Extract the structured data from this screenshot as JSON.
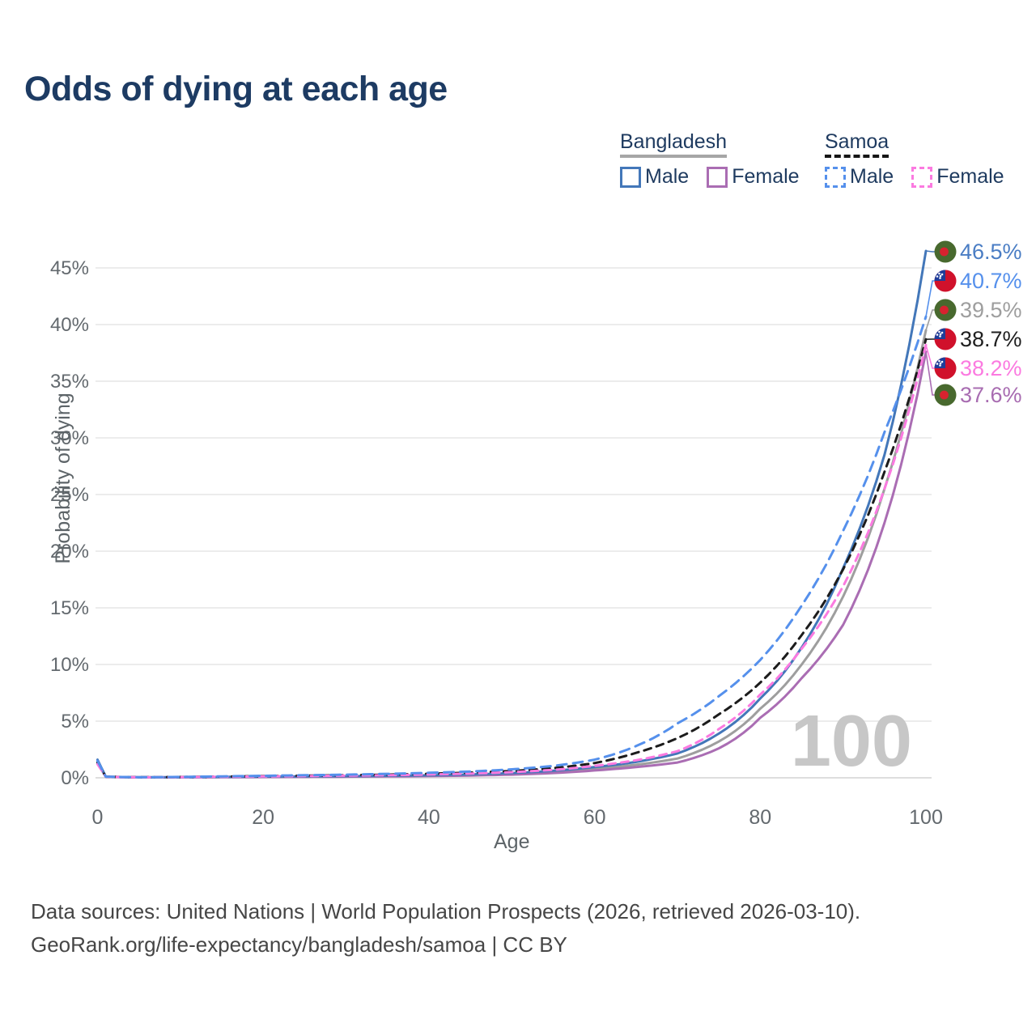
{
  "title": "Odds of dying at each age",
  "watermark_age": "100",
  "legend": {
    "groups": [
      {
        "name": "Bangladesh",
        "underline": "solid",
        "items": [
          {
            "label": "Male",
            "series": 0
          },
          {
            "label": "Female",
            "series": 5
          }
        ]
      },
      {
        "name": "Samoa",
        "underline": "dashed",
        "items": [
          {
            "label": "Male",
            "series": 1
          },
          {
            "label": "Female",
            "series": 4
          }
        ]
      }
    ]
  },
  "footer": {
    "line1": "Data sources: United Nations | World Population Prospects (2026, retrieved 2026-03-10).",
    "line2": "GeoRank.org/life-expectancy/bangladesh/samoa | CC BY"
  },
  "chart_data": {
    "type": "line",
    "title": "Odds of dying at each age",
    "xlabel": "Age",
    "ylabel": "Probability of dying",
    "xlim": [
      0,
      100
    ],
    "ylim_percent": [
      0,
      47
    ],
    "grid": true,
    "legend_position": "top-right",
    "x_ticks": [
      0,
      20,
      40,
      60,
      80,
      100
    ],
    "y_tick_values": [
      0,
      5,
      10,
      15,
      20,
      25,
      30,
      35,
      40,
      45
    ],
    "y_tick_labels": [
      "0%",
      "5%",
      "10%",
      "15%",
      "20%",
      "25%",
      "30%",
      "35%",
      "40%",
      "45%"
    ],
    "x": [
      0,
      1,
      5,
      10,
      15,
      20,
      25,
      30,
      35,
      40,
      45,
      50,
      55,
      60,
      65,
      70,
      75,
      80,
      85,
      90,
      95,
      100
    ],
    "series": [
      {
        "id": "bangladesh-male",
        "name": "Bangladesh — Male",
        "country": "Bangladesh",
        "sex": "male",
        "color": "#4377b9",
        "label_color": "#4a7dc4",
        "dashed": false,
        "flag": "bangladesh",
        "end_label": "46.5%",
        "values": [
          1.6,
          0.1,
          0.04,
          0.05,
          0.08,
          0.11,
          0.13,
          0.15,
          0.18,
          0.22,
          0.3,
          0.42,
          0.62,
          0.95,
          1.4,
          2.15,
          3.9,
          7.0,
          11.5,
          18.5,
          28.5,
          46.5
        ]
      },
      {
        "id": "samoa-male",
        "name": "Samoa — Male",
        "country": "Samoa",
        "sex": "male",
        "color": "#5590ec",
        "label_color": "#5590ec",
        "dashed": true,
        "flag": "samoa",
        "end_label": "40.7%",
        "values": [
          1.5,
          0.1,
          0.05,
          0.08,
          0.13,
          0.18,
          0.23,
          0.28,
          0.35,
          0.44,
          0.56,
          0.75,
          1.05,
          1.6,
          2.8,
          4.8,
          7.2,
          10.4,
          15.2,
          21.8,
          30.5,
          40.7
        ]
      },
      {
        "id": "bangladesh-both",
        "name": "Bangladesh — Both sexes",
        "country": "Bangladesh",
        "sex": "both",
        "color": "#9e9e9e",
        "label_color": "#9e9e9e",
        "dashed": false,
        "flag": "bangladesh",
        "end_label": "39.5%",
        "values": [
          1.45,
          0.1,
          0.04,
          0.05,
          0.07,
          0.09,
          0.11,
          0.13,
          0.16,
          0.19,
          0.26,
          0.36,
          0.53,
          0.8,
          1.15,
          1.7,
          3.2,
          6.1,
          10.0,
          16.0,
          25.5,
          39.5
        ]
      },
      {
        "id": "samoa-both",
        "name": "Samoa — Both sexes",
        "country": "Samoa",
        "sex": "both",
        "color": "#1c1c1c",
        "label_color": "#1f1f1f",
        "dashed": true,
        "flag": "samoa",
        "end_label": "38.7%",
        "values": [
          1.35,
          0.1,
          0.05,
          0.07,
          0.11,
          0.15,
          0.19,
          0.23,
          0.28,
          0.36,
          0.46,
          0.6,
          0.85,
          1.3,
          2.2,
          3.5,
          5.6,
          8.4,
          12.6,
          18.4,
          27.0,
          38.7
        ]
      },
      {
        "id": "samoa-female",
        "name": "Samoa — Female",
        "country": "Samoa",
        "sex": "female",
        "color": "#fb7ae0",
        "label_color": "#fb7ae0",
        "dashed": true,
        "flag": "samoa",
        "end_label": "38.2%",
        "values": [
          1.2,
          0.09,
          0.04,
          0.06,
          0.09,
          0.12,
          0.16,
          0.19,
          0.23,
          0.29,
          0.38,
          0.5,
          0.7,
          1.05,
          1.55,
          2.35,
          4.3,
          7.35,
          11.4,
          16.9,
          25.5,
          38.2
        ]
      },
      {
        "id": "bangladesh-female",
        "name": "Bangladesh — Female",
        "country": "Bangladesh",
        "sex": "female",
        "color": "#aa6db3",
        "label_color": "#a86cb1",
        "dashed": false,
        "flag": "bangladesh",
        "end_label": "37.6%",
        "values": [
          1.3,
          0.09,
          0.04,
          0.04,
          0.05,
          0.07,
          0.08,
          0.1,
          0.12,
          0.15,
          0.2,
          0.28,
          0.42,
          0.65,
          0.95,
          1.35,
          2.6,
          5.3,
          8.8,
          13.5,
          22.5,
          37.6
        ]
      }
    ],
    "flag_colors": {
      "bangladesh": {
        "field": "#48692e",
        "disc": "#d8222f"
      },
      "samoa": {
        "field": "#d0112b",
        "canton": "#1f3d99",
        "stars": "#ffffff"
      }
    }
  }
}
